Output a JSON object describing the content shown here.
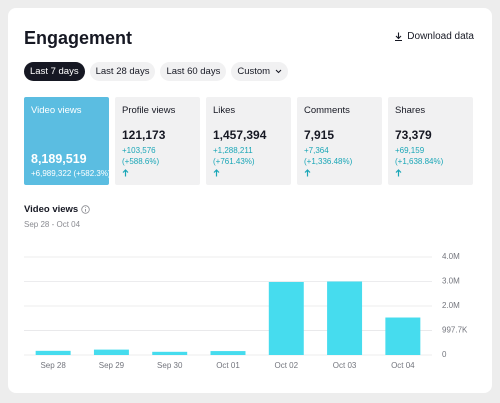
{
  "header": {
    "title": "Engagement",
    "download": "Download data"
  },
  "tabs": [
    "Last 7 days",
    "Last 28 days",
    "Last 60 days",
    "Custom"
  ],
  "metrics": [
    {
      "name": "Video views",
      "value": "8,189,519",
      "change": "+6,989,322",
      "percent": "(+582.3%)"
    },
    {
      "name": "Profile views",
      "value": "121,173",
      "change": "+103,576",
      "percent": "(+588.6%)"
    },
    {
      "name": "Likes",
      "value": "1,457,394",
      "change": "+1,288,211",
      "percent": "(+761.43%)"
    },
    {
      "name": "Comments",
      "value": "7,915",
      "change": "+7,364",
      "percent": "(+1,336.48%)"
    },
    {
      "name": "Shares",
      "value": "73,379",
      "change": "+69,159",
      "percent": "(+1,638.84%)"
    }
  ],
  "chart_data": {
    "type": "bar",
    "title": "Video views",
    "subtitle": "Sep 28 - Oct 04",
    "categories": [
      "Sep 28",
      "Sep 29",
      "Sep 30",
      "Oct 01",
      "Oct 02",
      "Oct 03",
      "Oct 04"
    ],
    "values": [
      170000,
      220000,
      130000,
      160000,
      2980000,
      3000000,
      1530000
    ],
    "color": "#46dcee",
    "ylim": [
      0,
      4000000
    ],
    "yticks": [
      0,
      {
        "value": 997700,
        "label": "997.7K"
      },
      {
        "value": 2000000,
        "label": "2.0M"
      },
      {
        "value": 3000000,
        "label": "3.0M"
      },
      {
        "value": 4000000,
        "label": "4.0M"
      }
    ],
    "grid": true
  }
}
